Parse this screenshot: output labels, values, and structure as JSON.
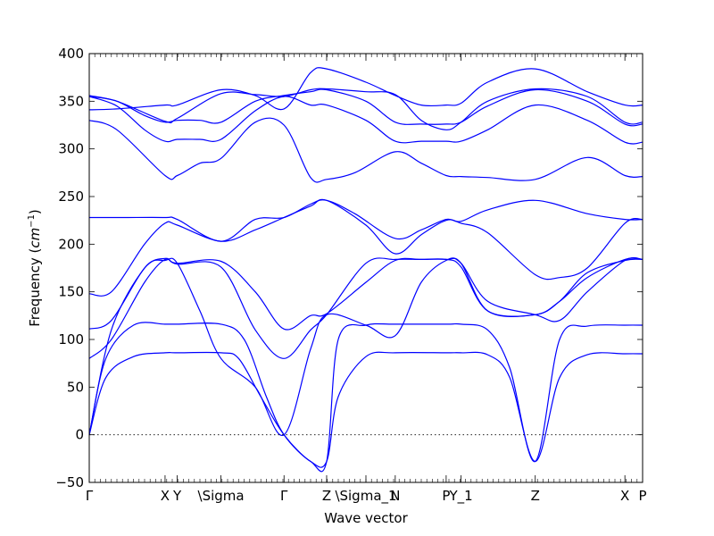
{
  "chart_data": {
    "type": "line",
    "title": "",
    "xlabel": "Wave vector",
    "ylabel": "Frequency",
    "ylabel_unit": "cm",
    "ylabel_unit_exp": "−1",
    "ylim": [
      -50,
      400
    ],
    "yticks": [
      -50,
      0,
      50,
      100,
      150,
      200,
      250,
      300,
      350,
      400
    ],
    "ytick_labels": [
      "−50",
      "0",
      "50",
      "100",
      "150",
      "200",
      "250",
      "300",
      "350",
      "400"
    ],
    "xlim": [
      0,
      1
    ],
    "xticks": [
      {
        "label": "Γ",
        "x": 0.0
      },
      {
        "label": "X",
        "x": 0.137
      },
      {
        "label": "Y",
        "x": 0.159
      },
      {
        "label": "\\Sigma",
        "x": 0.238
      },
      {
        "label": "Γ",
        "x": 0.352
      },
      {
        "label": "Z",
        "x": 0.429
      },
      {
        "label": "\\Sigma_1",
        "x": 0.5
      },
      {
        "label": "N",
        "x": 0.553
      },
      {
        "label": "P",
        "x": 0.645
      },
      {
        "label": "Y_1",
        "x": 0.672
      },
      {
        "label": "Z",
        "x": 0.806
      },
      {
        "label": "X",
        "x": 0.968
      },
      {
        "label": "P",
        "x": 1.0
      }
    ],
    "zero_line": true,
    "line_color": "#0000ff",
    "series": [
      {
        "x": [
          0,
          0.03,
          0.08,
          0.137,
          0.159,
          0.238,
          0.27,
          0.31,
          0.352,
          0.4,
          0.429,
          0.45,
          0.5,
          0.553,
          0.645,
          0.672,
          0.72,
          0.76,
          0.806,
          0.85,
          0.9,
          0.968,
          1.0
        ],
        "y": [
          0,
          60,
          82,
          86,
          86,
          86,
          80,
          40,
          0,
          -28,
          -28,
          40,
          82,
          86,
          86,
          86,
          84,
          60,
          -28,
          60,
          84,
          85,
          85
        ]
      },
      {
        "x": [
          0,
          0.03,
          0.08,
          0.137,
          0.159,
          0.238,
          0.28,
          0.32,
          0.352,
          0.4,
          0.429,
          0.45,
          0.5,
          0.553,
          0.645,
          0.672,
          0.72,
          0.76,
          0.806,
          0.85,
          0.9,
          0.968,
          1.0
        ],
        "y": [
          0,
          80,
          115,
          116,
          116,
          116,
          100,
          40,
          0,
          -28,
          -28,
          100,
          115,
          116,
          116,
          116,
          110,
          70,
          -28,
          100,
          114,
          115,
          115
        ]
      },
      {
        "x": [
          0,
          0.04,
          0.1,
          0.137,
          0.159,
          0.2,
          0.238,
          0.3,
          0.352,
          0.4,
          0.429,
          0.5,
          0.553,
          0.6,
          0.645,
          0.672,
          0.72,
          0.806,
          0.85,
          0.9,
          0.968,
          1.0
        ],
        "y": [
          0,
          110,
          175,
          183,
          180,
          130,
          80,
          50,
          0,
          90,
          126,
          115,
          104,
          160,
          183,
          180,
          140,
          126,
          120,
          150,
          183,
          184
        ]
      },
      {
        "x": [
          0,
          0.04,
          0.1,
          0.137,
          0.159,
          0.238,
          0.3,
          0.352,
          0.4,
          0.429,
          0.5,
          0.553,
          0.6,
          0.645,
          0.672,
          0.72,
          0.806,
          0.85,
          0.9,
          0.968,
          1.0
        ],
        "y": [
          80,
          100,
          160,
          184,
          179,
          176,
          110,
          80,
          110,
          126,
          180,
          184,
          184,
          184,
          180,
          130,
          126,
          140,
          165,
          184,
          184
        ]
      },
      {
        "x": [
          0,
          0.04,
          0.1,
          0.137,
          0.159,
          0.238,
          0.3,
          0.352,
          0.4,
          0.429,
          0.5,
          0.553,
          0.6,
          0.645,
          0.672,
          0.72,
          0.806,
          0.85,
          0.9,
          0.968,
          1.0
        ],
        "y": [
          111,
          120,
          175,
          185,
          180,
          182,
          150,
          111,
          125,
          127,
          160,
          183,
          184,
          184,
          176,
          130,
          126,
          140,
          170,
          183,
          184
        ]
      },
      {
        "x": [
          0,
          0.04,
          0.1,
          0.137,
          0.159,
          0.238,
          0.3,
          0.352,
          0.4,
          0.429,
          0.5,
          0.553,
          0.6,
          0.645,
          0.672,
          0.72,
          0.806,
          0.85,
          0.9,
          0.968,
          1.0
        ],
        "y": [
          148,
          150,
          200,
          222,
          220,
          203,
          215,
          228,
          240,
          246,
          220,
          190,
          210,
          225,
          222,
          212,
          168,
          165,
          175,
          222,
          226
        ]
      },
      {
        "x": [
          0,
          0.06,
          0.137,
          0.159,
          0.238,
          0.3,
          0.352,
          0.4,
          0.429,
          0.48,
          0.553,
          0.6,
          0.645,
          0.672,
          0.72,
          0.806,
          0.9,
          0.968,
          1.0
        ],
        "y": [
          228,
          228,
          228,
          226,
          203,
          226,
          228,
          242,
          246,
          232,
          206,
          215,
          226,
          224,
          236,
          246,
          232,
          226,
          226
        ]
      },
      {
        "x": [
          0,
          0.05,
          0.137,
          0.159,
          0.2,
          0.238,
          0.3,
          0.352,
          0.4,
          0.429,
          0.48,
          0.553,
          0.6,
          0.645,
          0.672,
          0.72,
          0.806,
          0.9,
          0.968,
          1.0
        ],
        "y": [
          330,
          320,
          272,
          272,
          285,
          290,
          328,
          325,
          270,
          268,
          275,
          297,
          285,
          272,
          271,
          270,
          268,
          291,
          272,
          271
        ]
      },
      {
        "x": [
          0,
          0.05,
          0.1,
          0.137,
          0.159,
          0.2,
          0.238,
          0.3,
          0.352,
          0.4,
          0.429,
          0.5,
          0.553,
          0.6,
          0.645,
          0.672,
          0.72,
          0.806,
          0.9,
          0.968,
          1.0
        ],
        "y": [
          355,
          345,
          320,
          308,
          310,
          310,
          310,
          340,
          355,
          346,
          346,
          330,
          308,
          308,
          308,
          308,
          320,
          346,
          330,
          307,
          307
        ]
      },
      {
        "x": [
          0,
          0.05,
          0.1,
          0.137,
          0.159,
          0.2,
          0.238,
          0.3,
          0.352,
          0.4,
          0.429,
          0.5,
          0.553,
          0.6,
          0.645,
          0.672,
          0.72,
          0.806,
          0.9,
          0.968,
          1.0
        ],
        "y": [
          356,
          350,
          335,
          328,
          330,
          330,
          328,
          350,
          356,
          360,
          362,
          350,
          328,
          326,
          326,
          328,
          345,
          362,
          350,
          326,
          326
        ]
      },
      {
        "x": [
          0,
          0.05,
          0.137,
          0.159,
          0.238,
          0.3,
          0.352,
          0.4,
          0.429,
          0.5,
          0.553,
          0.6,
          0.645,
          0.672,
          0.72,
          0.806,
          0.9,
          0.968,
          1.0
        ],
        "y": [
          341,
          342,
          346,
          346,
          362,
          356,
          342,
          380,
          384,
          370,
          356,
          346,
          346,
          348,
          370,
          384,
          360,
          346,
          346
        ]
      },
      {
        "x": [
          0,
          0.05,
          0.137,
          0.159,
          0.238,
          0.3,
          0.352,
          0.4,
          0.429,
          0.5,
          0.553,
          0.6,
          0.645,
          0.672,
          0.72,
          0.806,
          0.9,
          0.968,
          1.0
        ],
        "y": [
          355,
          350,
          329,
          332,
          358,
          357,
          355,
          362,
          363,
          360,
          357,
          330,
          320,
          328,
          350,
          363,
          355,
          328,
          328
        ]
      }
    ]
  }
}
